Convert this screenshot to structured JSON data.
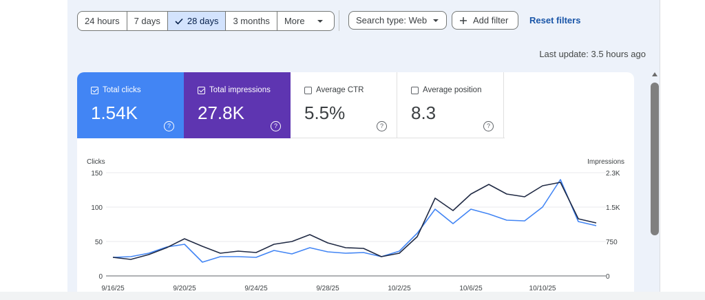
{
  "toolbar": {
    "ranges": [
      "24 hours",
      "7 days",
      "28 days",
      "3 months",
      "More"
    ],
    "active_range_index": 2,
    "search_type": "Search type: Web",
    "add_filter": "Add filter",
    "reset_filters": "Reset filters"
  },
  "last_update": "Last update: 3.5 hours ago",
  "metrics": [
    {
      "label": "Total clicks",
      "value": "1.54K",
      "checked": true,
      "color": "#4285f4"
    },
    {
      "label": "Total impressions",
      "value": "27.8K",
      "checked": true,
      "color": "#5e35b1"
    },
    {
      "label": "Average CTR",
      "value": "5.5%",
      "checked": false
    },
    {
      "label": "Average position",
      "value": "8.3",
      "checked": false
    }
  ],
  "icons": [
    "check-icon",
    "dropdown-icon",
    "add-icon",
    "help-icon",
    "scroll-up-icon"
  ],
  "chart_data": {
    "type": "line",
    "ylabel_left": "Clicks",
    "ylabel_right": "Impressions",
    "yticks_left": [
      "0",
      "50",
      "100",
      "150"
    ],
    "yticks_right": [
      "0",
      "750",
      "1.5K",
      "2.3K"
    ],
    "ylim_left": [
      0,
      150
    ],
    "ylim_right": [
      0,
      2250
    ],
    "x_tick_labels": [
      "9/16/25",
      "9/20/25",
      "9/24/25",
      "9/28/25",
      "10/2/25",
      "10/6/25",
      "10/10/25"
    ],
    "x_tick_indices": [
      0,
      4,
      8,
      12,
      16,
      20,
      24
    ],
    "series": [
      {
        "name": "Total clicks",
        "axis": "left",
        "color": "#4285f4",
        "values": [
          27,
          28,
          33,
          42,
          46,
          20,
          28,
          28,
          27,
          37,
          32,
          41,
          35,
          33,
          34,
          28,
          36,
          62,
          97,
          76,
          97,
          90,
          81,
          80,
          100,
          140,
          79,
          73
        ]
      },
      {
        "name": "Total impressions",
        "axis": "left",
        "color": "#202a44",
        "values": [
          27,
          24,
          31,
          41,
          54,
          43,
          33,
          36,
          34,
          46,
          50,
          60,
          48,
          41,
          40,
          28,
          33,
          57,
          113,
          95,
          119,
          133,
          119,
          115,
          131,
          136,
          83,
          77
        ]
      }
    ]
  }
}
